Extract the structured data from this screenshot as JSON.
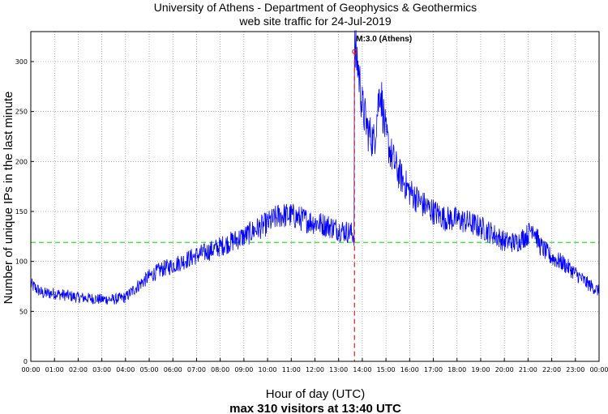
{
  "chart_data": {
    "type": "line",
    "title": "University of Athens - Department of Geophysics & Geothermics",
    "subtitle": "web site traffic for 24-Jul-2019",
    "xlabel": "Hour of day (UTC)",
    "ylabel": "Number of unique IPs in the last minute",
    "footer": "max 310 visitors at 13:40 UTC",
    "xlim": [
      0,
      24
    ],
    "ylim": [
      0,
      330
    ],
    "x_ticks": [
      "00:00",
      "01:00",
      "02:00",
      "03:00",
      "04:00",
      "05:00",
      "06:00",
      "07:00",
      "08:00",
      "09:00",
      "10:00",
      "11:00",
      "12:00",
      "13:00",
      "14:00",
      "15:00",
      "16:00",
      "17:00",
      "18:00",
      "19:00",
      "20:00",
      "21:00",
      "22:00",
      "23:00",
      "00:00"
    ],
    "y_ticks": [
      0,
      50,
      100,
      150,
      200,
      250,
      300
    ],
    "grid": true,
    "mean_line": {
      "y": 119,
      "color": "#33dd33"
    },
    "event": {
      "x": 13.67,
      "y": 310,
      "label": "M:3.0 (Athens)",
      "color": "#dd2222"
    },
    "series": [
      {
        "color": "#0000ff",
        "x": [
          0,
          0.5,
          1,
          1.5,
          2,
          2.5,
          3,
          3.5,
          4,
          4.5,
          5,
          5.5,
          6,
          6.5,
          7,
          7.5,
          8,
          8.5,
          9,
          9.5,
          10,
          10.5,
          11,
          11.5,
          12,
          12.5,
          13,
          13.5,
          13.65,
          13.67,
          13.8,
          14,
          14.25,
          14.5,
          14.75,
          15,
          15.25,
          15.5,
          16,
          16.5,
          17,
          17.5,
          18,
          18.5,
          19,
          19.5,
          20,
          20.5,
          21,
          21.2,
          21.5,
          22,
          22.5,
          23,
          23.5,
          24
        ],
        "y": [
          77,
          68,
          68,
          66,
          64,
          63,
          62,
          62,
          64,
          75,
          85,
          92,
          96,
          101,
          106,
          110,
          115,
          120,
          125,
          132,
          138,
          146,
          146,
          142,
          139,
          136,
          132,
          129,
          126,
          310,
          300,
          255,
          230,
          220,
          275,
          225,
          205,
          190,
          170,
          158,
          150,
          143,
          142,
          139,
          134,
          128,
          120,
          119,
          127,
          136,
          116,
          104,
          98,
          88,
          78,
          70
        ]
      }
    ]
  }
}
